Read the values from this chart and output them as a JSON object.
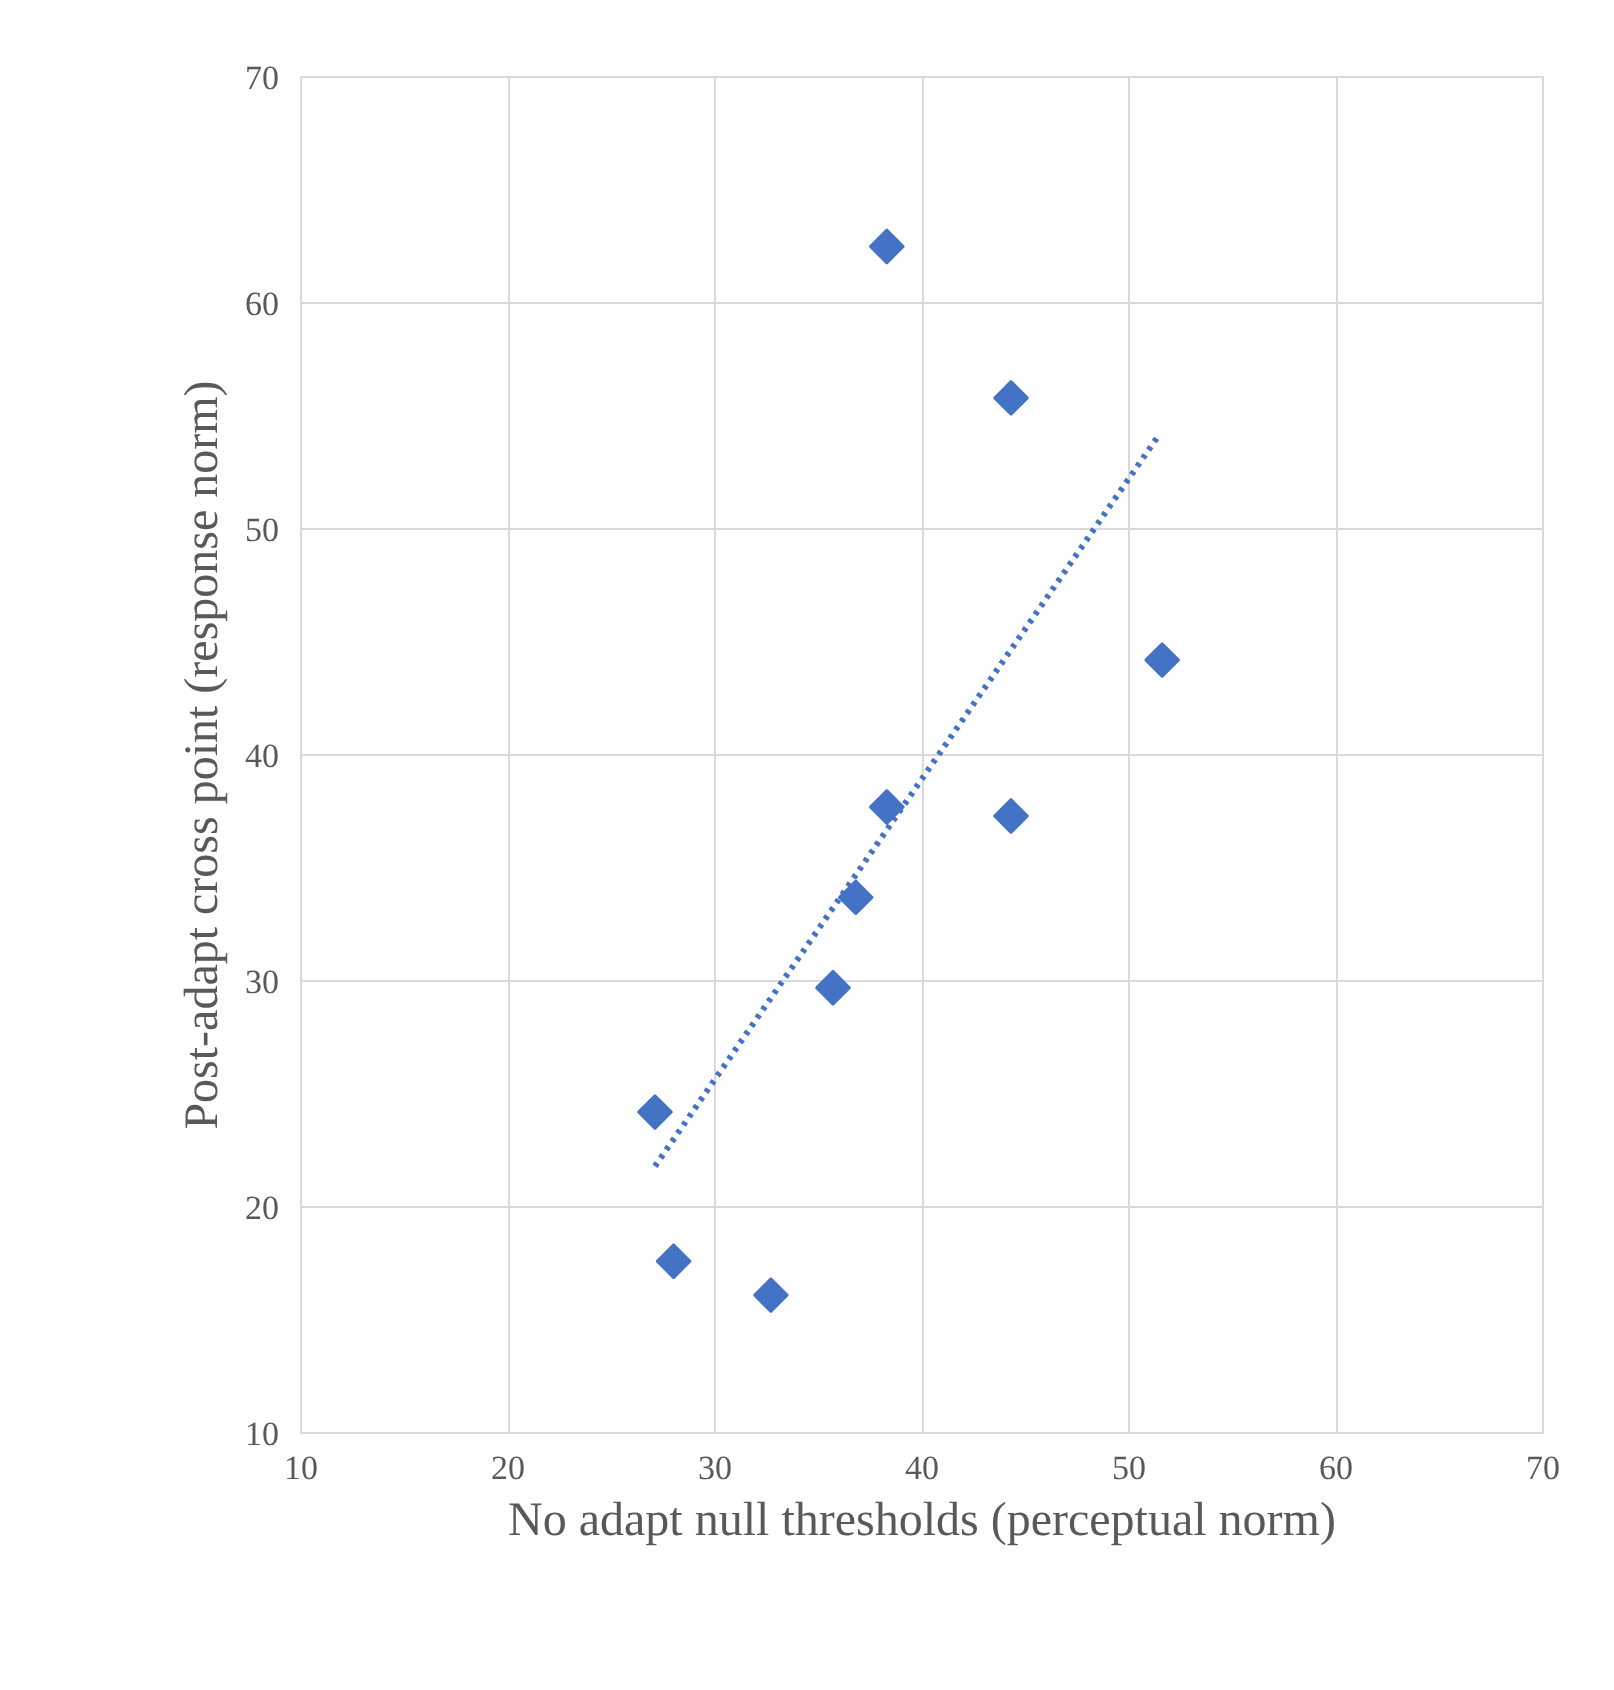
{
  "chart_data": {
    "type": "scatter",
    "xlabel": "No adapt null thresholds (perceptual norm)",
    "ylabel": "Post-adapt cross point (response norm)",
    "xlim": [
      10,
      70
    ],
    "ylim": [
      10,
      70
    ],
    "xticks": [
      10,
      20,
      30,
      40,
      50,
      60,
      70
    ],
    "yticks": [
      10,
      20,
      30,
      40,
      50,
      60,
      70
    ],
    "grid": true,
    "marker": "diamond",
    "series": [
      {
        "color": "#4472c4",
        "x": [
          27.1,
          28.0,
          32.7,
          35.7,
          36.8,
          38.3,
          38.3,
          44.3,
          44.3,
          51.6
        ],
        "values": [
          24.2,
          17.6,
          16.1,
          29.7,
          33.7,
          37.7,
          62.5,
          55.8,
          37.3,
          44.2
        ]
      },
      {
        "type": "line",
        "color": "#4472c4",
        "line_style": "dotted",
        "marker": "none",
        "x": [
          27.1,
          51.4
        ],
        "values": [
          21.8,
          54.1
        ]
      }
    ]
  }
}
